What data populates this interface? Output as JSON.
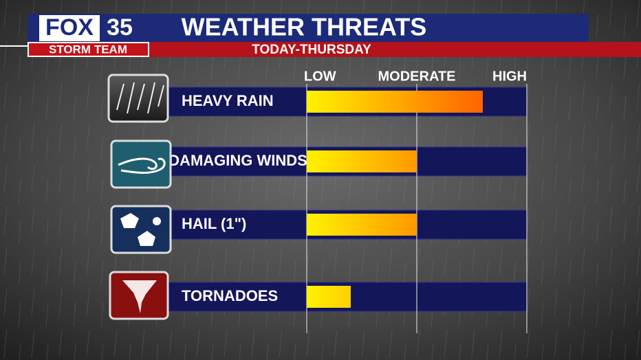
{
  "logo": {
    "brand": "FOX",
    "number": "35",
    "team": "STORM TEAM"
  },
  "chart_data": {
    "type": "bar",
    "title": "WEATHER THREATS",
    "subtitle": "TODAY-THURSDAY",
    "categories": [
      "HEAVY RAIN",
      "DAMAGING WINDS",
      "HAIL (1\")",
      "TORNADOES"
    ],
    "values": [
      1.6,
      1.0,
      1.0,
      0.4
    ],
    "colors": [
      "#fff200",
      "#ff4000"
    ],
    "xlim": [
      0,
      2
    ],
    "xticks": [
      {
        "value": 0,
        "label": "LOW"
      },
      {
        "value": 1,
        "label": "MODERATE"
      },
      {
        "value": 2,
        "label": "HIGH"
      }
    ],
    "grid": true
  }
}
